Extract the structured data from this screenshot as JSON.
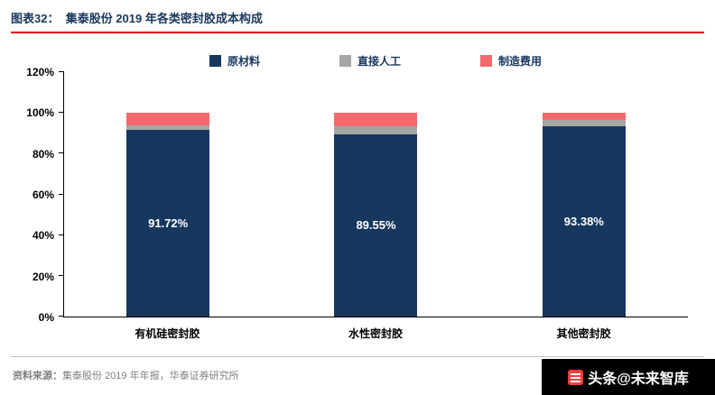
{
  "header": {
    "figure_label": "图表32：  ",
    "title": "集泰股份 2019 年各类密封胶成本构成"
  },
  "chart_data": {
    "type": "bar",
    "stacked": true,
    "title": "集泰股份 2019 年各类密封胶成本构成",
    "categories": [
      "有机硅密封胶",
      "水性密封胶",
      "其他密封胶"
    ],
    "series": [
      {
        "name": "原材料",
        "color": "#17375E",
        "values": [
          91.72,
          89.55,
          93.38
        ],
        "labels": [
          "91.72%",
          "89.55%",
          "93.38%"
        ]
      },
      {
        "name": "直接人工",
        "color": "#A6A6A6",
        "values": [
          2.3,
          4.0,
          3.12
        ]
      },
      {
        "name": "制造费用",
        "color": "#F4696B",
        "values": [
          5.98,
          6.45,
          3.5
        ]
      }
    ],
    "ylim": [
      0,
      120
    ],
    "yticks": [
      "0%",
      "20%",
      "40%",
      "60%",
      "80%",
      "100%",
      "120%"
    ],
    "legend_position": "top",
    "grid": false
  },
  "footer": {
    "source_label": "资料来源：",
    "source_text": "集泰股份 2019 年年报，华泰证券研究所",
    "watermark_text": "头条@未来智库"
  }
}
